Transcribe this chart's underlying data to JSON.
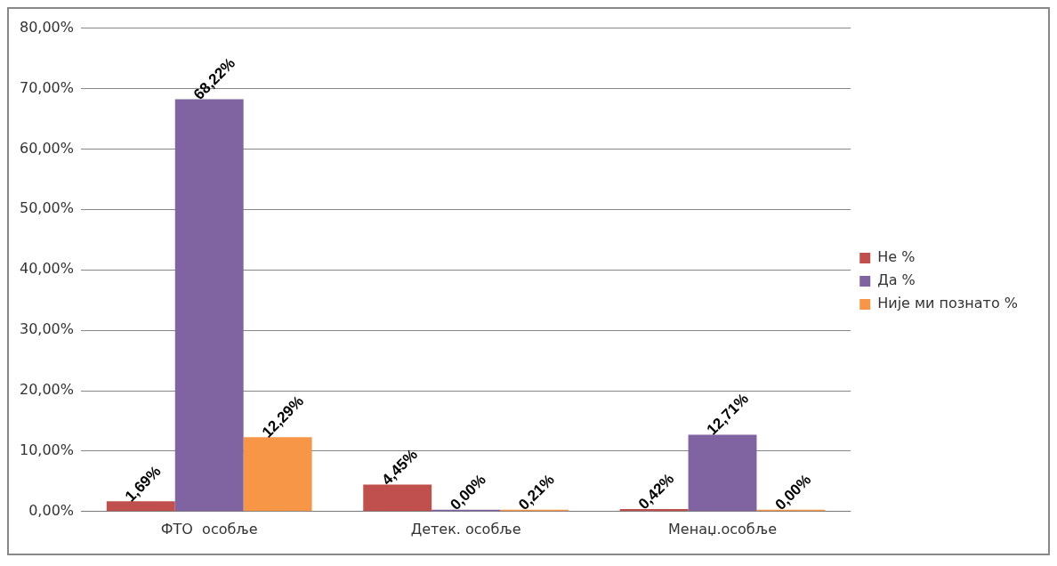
{
  "chart_data": {
    "type": "bar",
    "categories": [
      "ФТО  особље",
      "Детек. особље",
      "Менаџ.особље"
    ],
    "series": [
      {
        "name": "Не %",
        "color": "#c0504d",
        "values": [
          1.69,
          4.45,
          0.42
        ],
        "value_labels": [
          "1,69%",
          "4,45%",
          "0,42%"
        ]
      },
      {
        "name": "Да %",
        "color": "#8064a2",
        "values": [
          68.22,
          0,
          12.71
        ],
        "value_labels": [
          "68,22%",
          "0,00%",
          "12,71%"
        ]
      },
      {
        "name": "Није ми познато %",
        "color": "#f79646",
        "values": [
          12.29,
          0.21,
          0
        ],
        "value_labels": [
          "12,29%",
          "0,21%",
          "0,00%"
        ]
      }
    ],
    "ylim": [
      0,
      80
    ],
    "yticks": [
      {
        "value": 0,
        "label": "0,00%"
      },
      {
        "value": 10,
        "label": "10,00%"
      },
      {
        "value": 20,
        "label": "20,00%"
      },
      {
        "value": 30,
        "label": "30,00%"
      },
      {
        "value": 40,
        "label": "40,00%"
      },
      {
        "value": 50,
        "label": "50,00%"
      },
      {
        "value": 60,
        "label": "60,00%"
      },
      {
        "value": 70,
        "label": "70,00%"
      },
      {
        "value": 80,
        "label": "80,00%"
      }
    ],
    "grid": "y",
    "legend": "right"
  }
}
